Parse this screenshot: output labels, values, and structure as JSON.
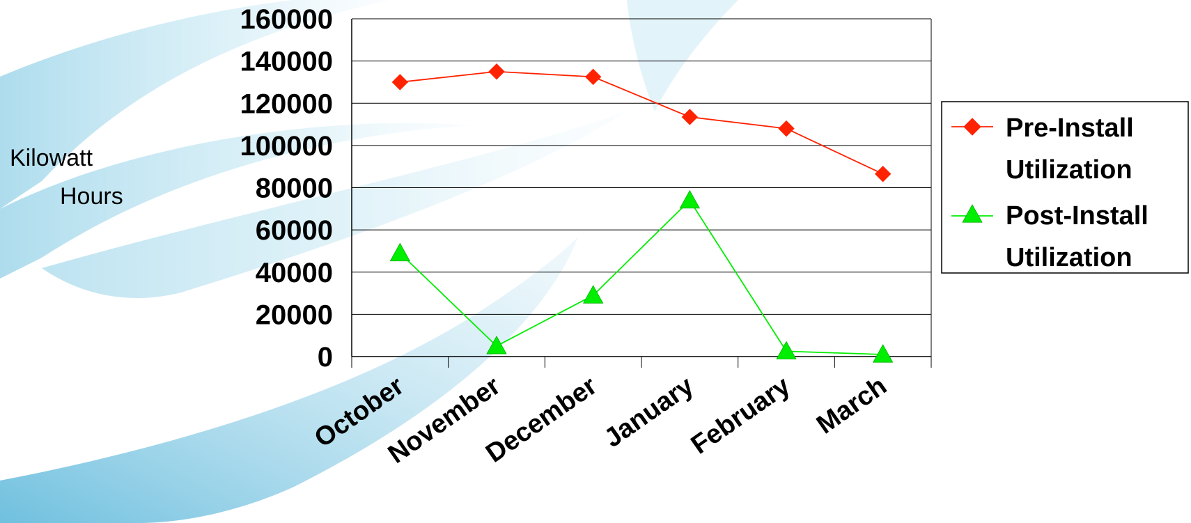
{
  "chart_data": {
    "type": "line",
    "title": "",
    "xlabel": "",
    "ylabel": "Kilowatt Hours",
    "ylabel_lines": [
      "Kilowatt",
      "Hours"
    ],
    "categories": [
      "October",
      "November",
      "December",
      "January",
      "February",
      "March"
    ],
    "ylim": [
      0,
      160000
    ],
    "yticks": [
      0,
      20000,
      40000,
      60000,
      80000,
      100000,
      120000,
      140000,
      160000
    ],
    "ytick_labels": [
      "0",
      "20000",
      "40000",
      "60000",
      "80000",
      "100000",
      "120000",
      "140000",
      "160000"
    ],
    "grid": true,
    "legend_position": "right",
    "series": [
      {
        "name": "Pre-Install Utilization",
        "name_lines": [
          "Pre-Install",
          "Utilization"
        ],
        "values": [
          130000,
          135000,
          132500,
          113500,
          108000,
          86500
        ],
        "color": "#ff2200",
        "marker": "diamond"
      },
      {
        "name": "Post-Install Utilization",
        "name_lines": [
          "Post-Install",
          "Utilization"
        ],
        "values": [
          49000,
          5000,
          29000,
          74000,
          2500,
          1000
        ],
        "color": "#00ee00",
        "marker": "triangle"
      }
    ]
  }
}
